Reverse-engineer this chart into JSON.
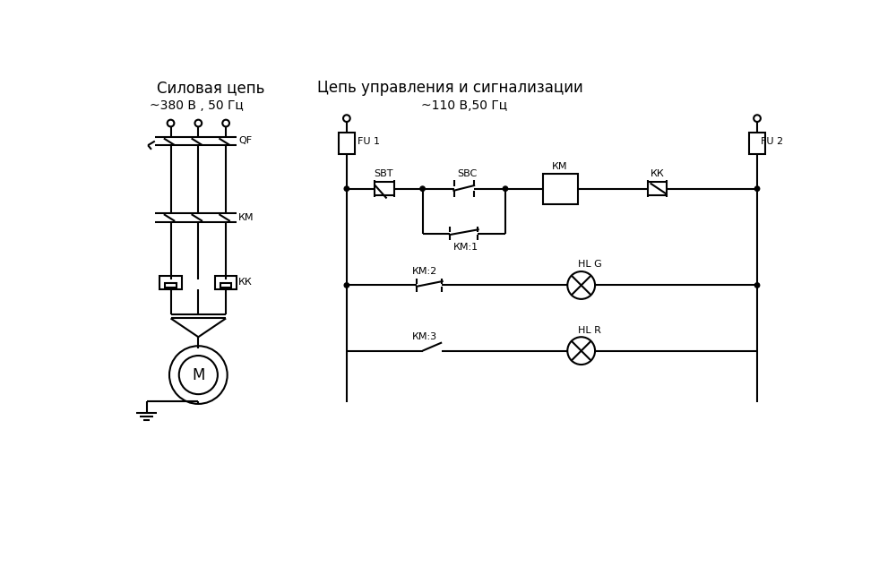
{
  "title_left": "Силовая цепь",
  "title_right": "Цепь управления и сигнализации",
  "subtitle_left": "~380 В , 50 Гц",
  "subtitle_right": "~110 В,50 Гц",
  "bg_color": "#ffffff",
  "line_color": "#000000",
  "font_size_title": 12,
  "font_size_sub": 10,
  "font_size_label": 8
}
